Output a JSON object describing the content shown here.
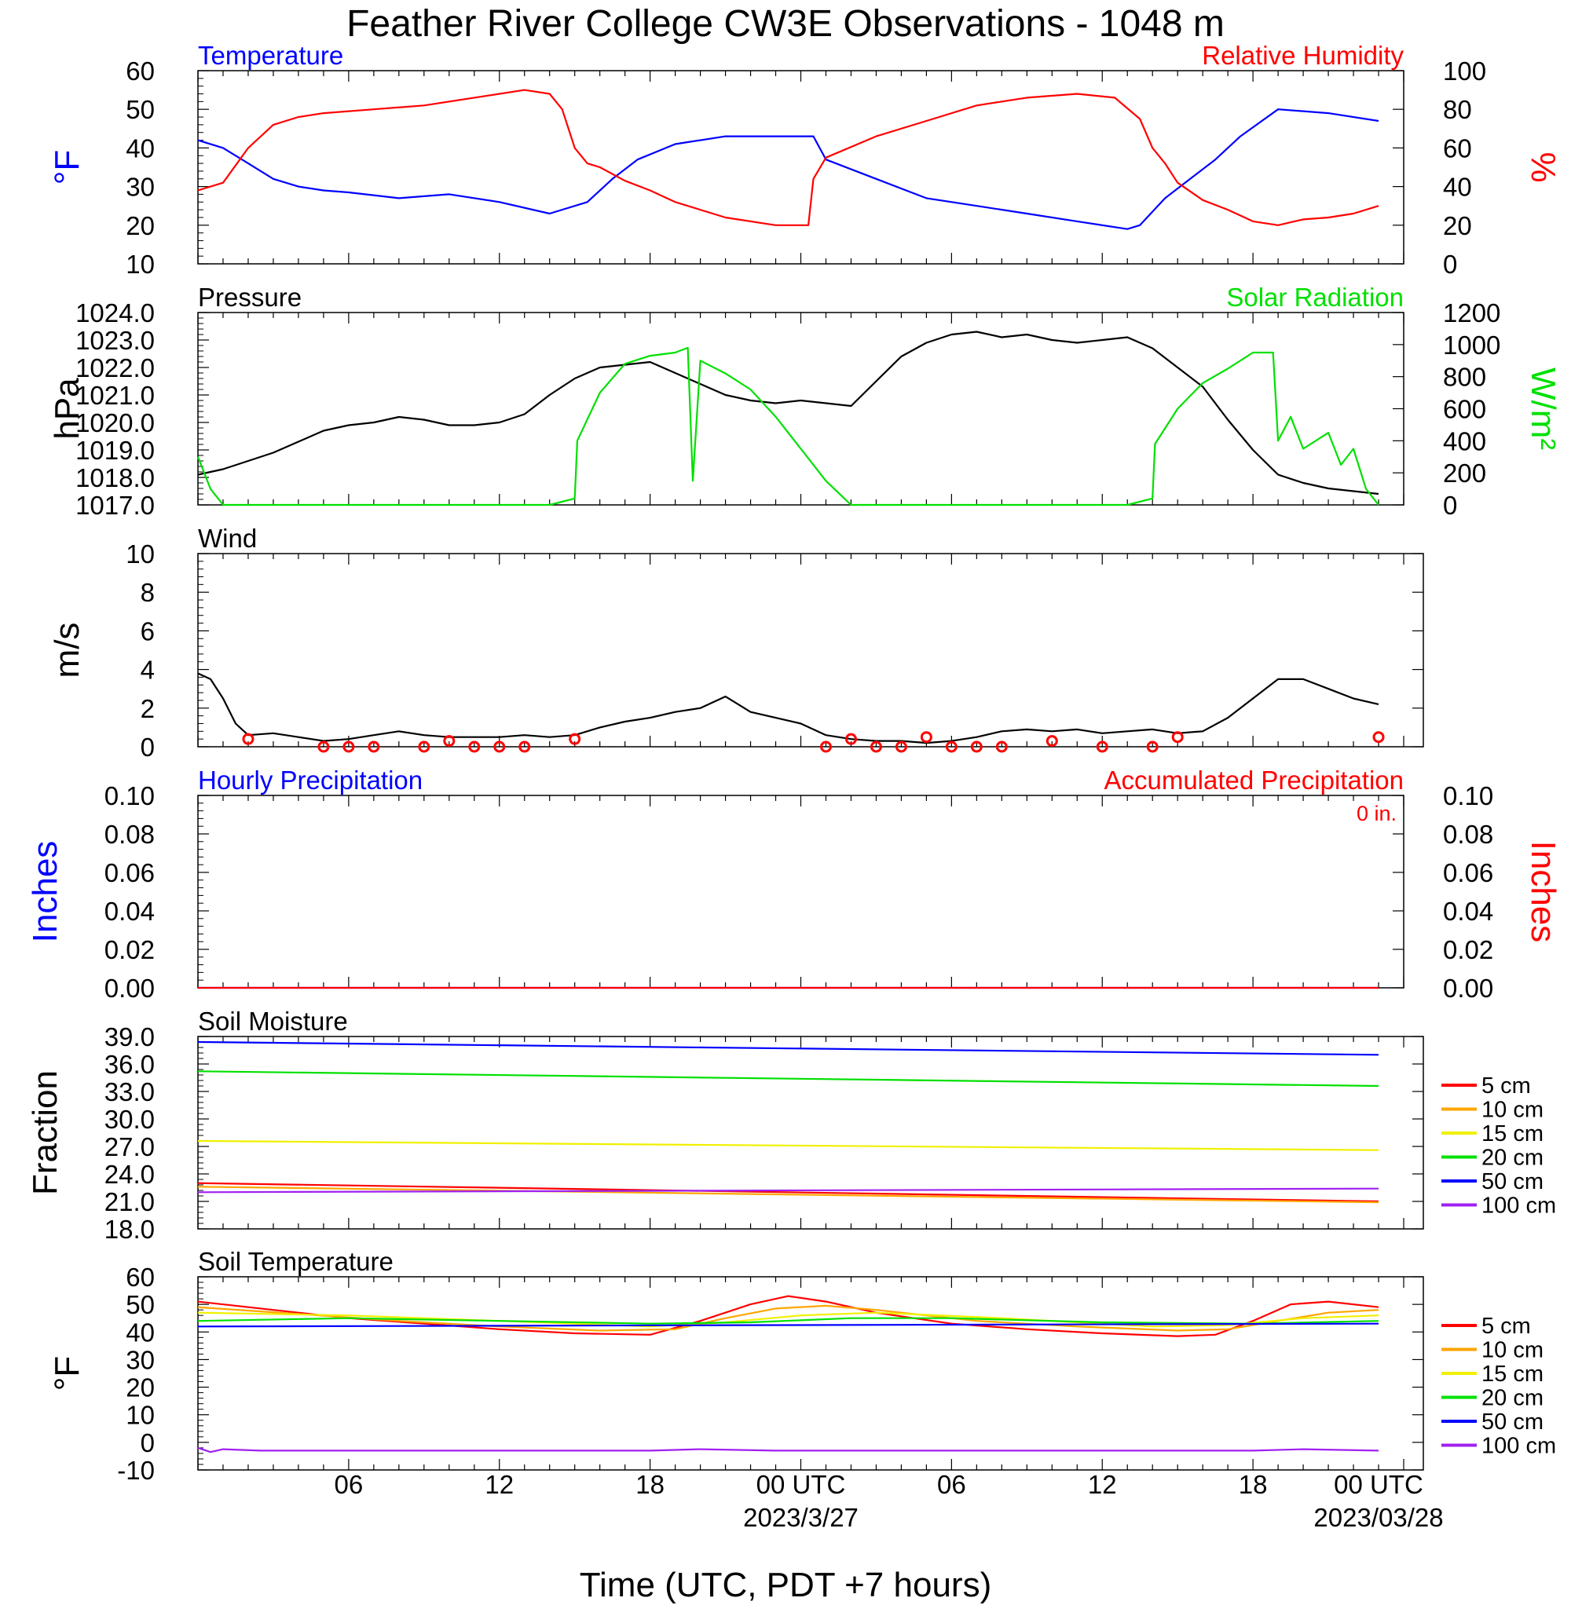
{
  "title": "Feather River College CW3E Observations - 1048 m",
  "x_axis": {
    "tick_labels": [
      "06",
      "12",
      "18",
      "00 UTC",
      "06",
      "12",
      "18",
      "00 UTC"
    ],
    "date_labels": [
      "2023/3/27",
      "2023/03/28"
    ],
    "xlabel": "Time (UTC, PDT +7 hours)"
  },
  "colors": {
    "blue": "#0000ff",
    "red": "#ff0000",
    "green": "#00e000",
    "black": "#000000",
    "orange": "#ffa500",
    "yellow": "#f0f000",
    "purple": "#a020f0"
  },
  "chart_data": [
    {
      "type": "line",
      "title_left": "Temperature",
      "title_right": "Relative Humidity",
      "ylabel_left": "°F",
      "ylabel_right": "%",
      "ylim_left": [
        10,
        60
      ],
      "ylim_right": [
        0,
        100
      ],
      "yticks_left": [
        "10",
        "20",
        "30",
        "40",
        "50",
        "60"
      ],
      "yticks_right": [
        "0",
        "20",
        "40",
        "60",
        "80",
        "100"
      ],
      "series": [
        {
          "name": "Temperature",
          "axis": "left",
          "color": "#0000ff",
          "x": [
            0,
            1,
            2,
            3,
            4,
            5,
            6,
            8,
            10,
            12,
            14,
            15.5,
            16.5,
            17.5,
            19,
            21,
            23,
            24.5,
            25,
            27,
            29,
            31,
            33,
            35,
            37,
            37.5,
            38.5,
            39.5,
            40.5,
            41.5,
            43,
            45,
            47
          ],
          "y": [
            42,
            40,
            36,
            32,
            30,
            29,
            28.5,
            27,
            28,
            26,
            23,
            26,
            32,
            37,
            41,
            43,
            43,
            43,
            37,
            32,
            27,
            25,
            23,
            21,
            19,
            20,
            27,
            32,
            37,
            43,
            50,
            49,
            47
          ]
        },
        {
          "name": "Relative Humidity",
          "axis": "right",
          "color": "#ff0000",
          "x": [
            0,
            1,
            2,
            3,
            4,
            5,
            7,
            9,
            11,
            13,
            14,
            14.5,
            15,
            15.5,
            16,
            17,
            18,
            19,
            21,
            23,
            24.3,
            24.5,
            25,
            27,
            29,
            31,
            33,
            35,
            36.5,
            37.5,
            38,
            38.5,
            39,
            40,
            41,
            42,
            43,
            44,
            45,
            46,
            47
          ],
          "y": [
            38,
            42,
            60,
            72,
            76,
            78,
            80,
            82,
            86,
            90,
            88,
            80,
            60,
            52,
            50,
            43,
            38,
            32,
            24,
            20,
            20,
            44,
            55,
            66,
            74,
            82,
            86,
            88,
            86,
            75,
            60,
            52,
            42,
            33,
            28,
            22,
            20,
            23,
            24,
            26,
            30
          ]
        }
      ]
    },
    {
      "type": "line",
      "title_left": "Pressure",
      "title_right": "Solar Radiation",
      "ylabel_left": "hPa",
      "ylabel_right": "W/m²",
      "ylim_left": [
        1017.0,
        1024.0
      ],
      "ylim_right": [
        0,
        1200
      ],
      "yticks_left": [
        "1017.0",
        "1018.0",
        "1019.0",
        "1020.0",
        "1021.0",
        "1022.0",
        "1023.0",
        "1024.0"
      ],
      "yticks_right": [
        "0",
        "200",
        "400",
        "600",
        "800",
        "1000",
        "1200"
      ],
      "series": [
        {
          "name": "Pressure",
          "axis": "left",
          "color": "#000000",
          "x": [
            0,
            1,
            2,
            3,
            4,
            5,
            6,
            7,
            8,
            9,
            10,
            11,
            12,
            13,
            14,
            15,
            16,
            17,
            18,
            19,
            20,
            21,
            22,
            23,
            24,
            25,
            26,
            27,
            28,
            29,
            30,
            31,
            32,
            33,
            34,
            35,
            36,
            37,
            38,
            39,
            40,
            41,
            42,
            43,
            44,
            45,
            46,
            47
          ],
          "y": [
            1018.1,
            1018.3,
            1018.6,
            1018.9,
            1019.3,
            1019.7,
            1019.9,
            1020.0,
            1020.2,
            1020.1,
            1019.9,
            1019.9,
            1020.0,
            1020.3,
            1021.0,
            1021.6,
            1022.0,
            1022.1,
            1022.2,
            1021.8,
            1021.4,
            1021.0,
            1020.8,
            1020.7,
            1020.8,
            1020.7,
            1020.6,
            1021.5,
            1022.4,
            1022.9,
            1023.2,
            1023.3,
            1023.1,
            1023.2,
            1023.0,
            1022.9,
            1023.0,
            1023.1,
            1022.7,
            1022.0,
            1021.3,
            1020.1,
            1019.0,
            1018.1,
            1017.8,
            1017.6,
            1017.5,
            1017.4
          ]
        },
        {
          "name": "Solar Radiation",
          "axis": "right",
          "color": "#00e000",
          "x": [
            0,
            0.5,
            1,
            14,
            15,
            15.1,
            16,
            17,
            18,
            19,
            19.5,
            19.7,
            20,
            21,
            22,
            23,
            24,
            25,
            26,
            37,
            38,
            38.1,
            39,
            40,
            41,
            42,
            42.8,
            43,
            43.5,
            44,
            45,
            45.5,
            46,
            46.5,
            47
          ],
          "y": [
            300,
            100,
            0,
            0,
            40,
            400,
            700,
            880,
            930,
            950,
            980,
            150,
            900,
            820,
            720,
            550,
            350,
            150,
            0,
            0,
            40,
            380,
            600,
            760,
            850,
            950,
            950,
            400,
            550,
            350,
            450,
            250,
            350,
            100,
            0
          ]
        }
      ]
    },
    {
      "type": "line",
      "title_left": "Wind",
      "ylabel_left": "m/s",
      "ylim_left": [
        0,
        10
      ],
      "yticks_left": [
        "0",
        "2",
        "4",
        "6",
        "8",
        "10"
      ],
      "series": [
        {
          "name": "Wind",
          "axis": "left",
          "color": "#000000",
          "x": [
            0,
            0.5,
            1,
            1.5,
            2,
            3,
            4,
            5,
            6,
            7,
            8,
            9,
            10,
            11,
            12,
            13,
            14,
            15,
            16,
            17,
            18,
            19,
            20,
            21,
            22,
            23,
            24,
            25,
            26,
            27,
            28,
            29,
            30,
            31,
            32,
            33,
            34,
            35,
            36,
            37,
            38,
            39,
            40,
            41,
            42,
            43,
            44,
            45,
            46,
            47
          ],
          "y": [
            3.8,
            3.5,
            2.5,
            1.2,
            0.6,
            0.7,
            0.5,
            0.3,
            0.4,
            0.6,
            0.8,
            0.6,
            0.5,
            0.5,
            0.5,
            0.6,
            0.5,
            0.6,
            1.0,
            1.3,
            1.5,
            1.8,
            2.0,
            2.6,
            1.8,
            1.5,
            1.2,
            0.6,
            0.4,
            0.3,
            0.3,
            0.2,
            0.3,
            0.5,
            0.8,
            0.9,
            0.8,
            0.9,
            0.7,
            0.8,
            0.9,
            0.7,
            0.8,
            1.5,
            2.5,
            3.5,
            3.5,
            3.0,
            2.5,
            2.2
          ]
        }
      ],
      "wind_markers_x": [
        2,
        5,
        6,
        7,
        9,
        10,
        11,
        12,
        13,
        15,
        25,
        26,
        27,
        28,
        29,
        30,
        31,
        32,
        34,
        36,
        38,
        39,
        47
      ],
      "wind_markers_y": [
        0.4,
        0,
        0,
        0,
        0,
        0.3,
        0,
        0,
        0,
        0.4,
        0,
        0.4,
        0,
        0,
        0.5,
        0,
        0,
        0,
        0.3,
        0,
        0,
        0.5,
        0.5
      ]
    },
    {
      "type": "line",
      "title_left": "Hourly Precipitation",
      "title_right": "Accumulated Precipitation",
      "annotation": "0 in.",
      "ylabel_left": "Inches",
      "ylabel_right": "Inches",
      "ylim_left": [
        0,
        0.1
      ],
      "ylim_right": [
        0,
        0.1
      ],
      "yticks_left": [
        "0.00",
        "0.02",
        "0.04",
        "0.06",
        "0.08",
        "0.10"
      ],
      "yticks_right": [
        "0.00",
        "0.02",
        "0.04",
        "0.06",
        "0.08",
        "0.10"
      ],
      "series": [
        {
          "name": "Hourly Precipitation",
          "axis": "left",
          "color": "#0000ff",
          "x": [
            0,
            47
          ],
          "y": [
            0,
            0
          ]
        },
        {
          "name": "Accumulated Precipitation",
          "axis": "right",
          "color": "#ff0000",
          "x": [
            0,
            47
          ],
          "y": [
            0,
            0
          ]
        }
      ]
    },
    {
      "type": "line",
      "title_left": "Soil Moisture",
      "ylabel_left": "Fraction",
      "ylim_left": [
        18,
        39
      ],
      "yticks_left": [
        "18.0",
        "21.0",
        "24.0",
        "27.0",
        "30.0",
        "33.0",
        "36.0",
        "39.0"
      ],
      "legend": [
        "5 cm",
        "10 cm",
        "15 cm",
        "20 cm",
        "50 cm",
        "100 cm"
      ],
      "series": [
        {
          "name": "5 cm",
          "color": "#ff0000",
          "x": [
            0,
            47
          ],
          "y": [
            23.0,
            21.0
          ]
        },
        {
          "name": "10 cm",
          "color": "#ffa500",
          "x": [
            0,
            47
          ],
          "y": [
            22.6,
            20.9
          ]
        },
        {
          "name": "15 cm",
          "color": "#f0f000",
          "x": [
            0,
            47
          ],
          "y": [
            27.6,
            26.6
          ]
        },
        {
          "name": "20 cm",
          "color": "#00e000",
          "x": [
            0,
            47
          ],
          "y": [
            35.2,
            33.6
          ]
        },
        {
          "name": "50 cm",
          "color": "#0000ff",
          "x": [
            0,
            47
          ],
          "y": [
            38.4,
            37.0
          ]
        },
        {
          "name": "100 cm",
          "color": "#a020f0",
          "x": [
            0,
            47
          ],
          "y": [
            22.0,
            22.4
          ]
        }
      ]
    },
    {
      "type": "line",
      "title_left": "Soil Temperature",
      "ylabel_left": "°F",
      "ylim_left": [
        -10,
        60
      ],
      "yticks_left": [
        "-10",
        "0",
        "10",
        "20",
        "30",
        "40",
        "50",
        "60"
      ],
      "legend": [
        "5 cm",
        "10 cm",
        "15 cm",
        "20 cm",
        "50 cm",
        "100 cm"
      ],
      "series": [
        {
          "name": "5 cm",
          "color": "#ff0000",
          "x": [
            0,
            3,
            6,
            9,
            12,
            15,
            18,
            20,
            22,
            23.5,
            25,
            27,
            30,
            33,
            36,
            39,
            40.5,
            42,
            43.5,
            45,
            47
          ],
          "y": [
            51,
            48,
            45,
            43,
            41,
            39.5,
            39,
            44,
            50,
            53,
            51,
            47,
            43,
            41,
            39.5,
            38.5,
            39,
            44,
            50,
            51,
            49
          ]
        },
        {
          "name": "10 cm",
          "color": "#ffa500",
          "x": [
            0,
            4,
            8,
            12,
            16,
            19,
            21,
            23,
            25,
            27,
            31,
            35,
            39,
            41,
            43,
            45,
            47
          ],
          "y": [
            49,
            46.5,
            44,
            42,
            40.5,
            41,
            45,
            48.5,
            49.5,
            48,
            44,
            42,
            40.5,
            41,
            44,
            47,
            48
          ]
        },
        {
          "name": "15 cm",
          "color": "#f0f000",
          "x": [
            0,
            6,
            12,
            18,
            21,
            24,
            27,
            32,
            38,
            41,
            44,
            47
          ],
          "y": [
            47,
            46,
            44,
            42,
            43.5,
            46,
            47,
            45,
            42,
            42.5,
            45,
            46
          ]
        },
        {
          "name": "20 cm",
          "color": "#00e000",
          "x": [
            0,
            6,
            12,
            18,
            22,
            26,
            30,
            36,
            42,
            47
          ],
          "y": [
            44,
            45,
            44,
            43,
            43.5,
            45,
            45,
            43.5,
            43,
            44
          ]
        },
        {
          "name": "50 cm",
          "color": "#0000ff",
          "x": [
            0,
            47
          ],
          "y": [
            42,
            43
          ]
        },
        {
          "name": "100 cm",
          "color": "#a020f0",
          "x": [
            0,
            0.5,
            1,
            2.5,
            16,
            18,
            20,
            23,
            25,
            40.5,
            42,
            44,
            47
          ],
          "y": [
            -2,
            -3.5,
            -2.5,
            -3,
            -3,
            -3,
            -2.5,
            -3,
            -3,
            -3,
            -3,
            -2.5,
            -3
          ]
        }
      ]
    }
  ]
}
